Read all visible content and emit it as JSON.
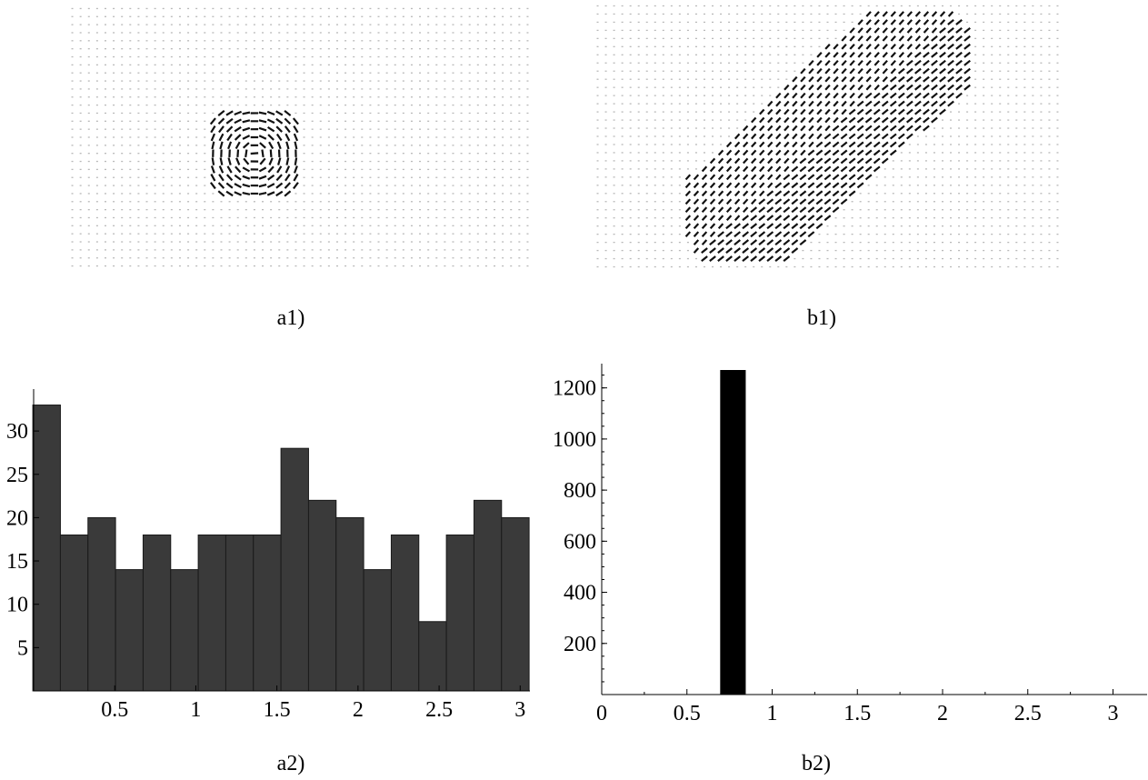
{
  "captions": {
    "a1": "a1)",
    "b1": "b1)",
    "a2": "a2)",
    "b2": "b2)"
  },
  "chart_data": [
    {
      "type": "bar",
      "histogram": true,
      "x": [
        0.08,
        0.25,
        0.42,
        0.59,
        0.76,
        0.93,
        1.1,
        1.27,
        1.44,
        1.61,
        1.78,
        1.95,
        2.12,
        2.29,
        2.46,
        2.63,
        2.8,
        2.97
      ],
      "bin_width": 0.17,
      "values": [
        33,
        18,
        20,
        14,
        18,
        14,
        18,
        18,
        18,
        28,
        22,
        20,
        14,
        18,
        8,
        18,
        22,
        20
      ],
      "xlim": [
        0,
        3.06
      ],
      "ylim": [
        0,
        34
      ],
      "xticks": [
        "0.5",
        "1",
        "1.5",
        "2",
        "2.5",
        "3"
      ],
      "yticks": [
        "5",
        "10",
        "15",
        "20",
        "25",
        "30"
      ],
      "bar_color": "#3a3a3a"
    },
    {
      "type": "bar",
      "histogram": true,
      "x": [
        0.77
      ],
      "bin_width": 0.15,
      "values": [
        1270
      ],
      "xlim": [
        0,
        3.2
      ],
      "ylim": [
        0,
        1270
      ],
      "xticks": [
        "0",
        "0.5",
        "1",
        "1.5",
        "2",
        "2.5",
        "3"
      ],
      "yticks": [
        "200",
        "400",
        "600",
        "800",
        "1000",
        "1200"
      ],
      "bar_color": "#000000"
    }
  ]
}
